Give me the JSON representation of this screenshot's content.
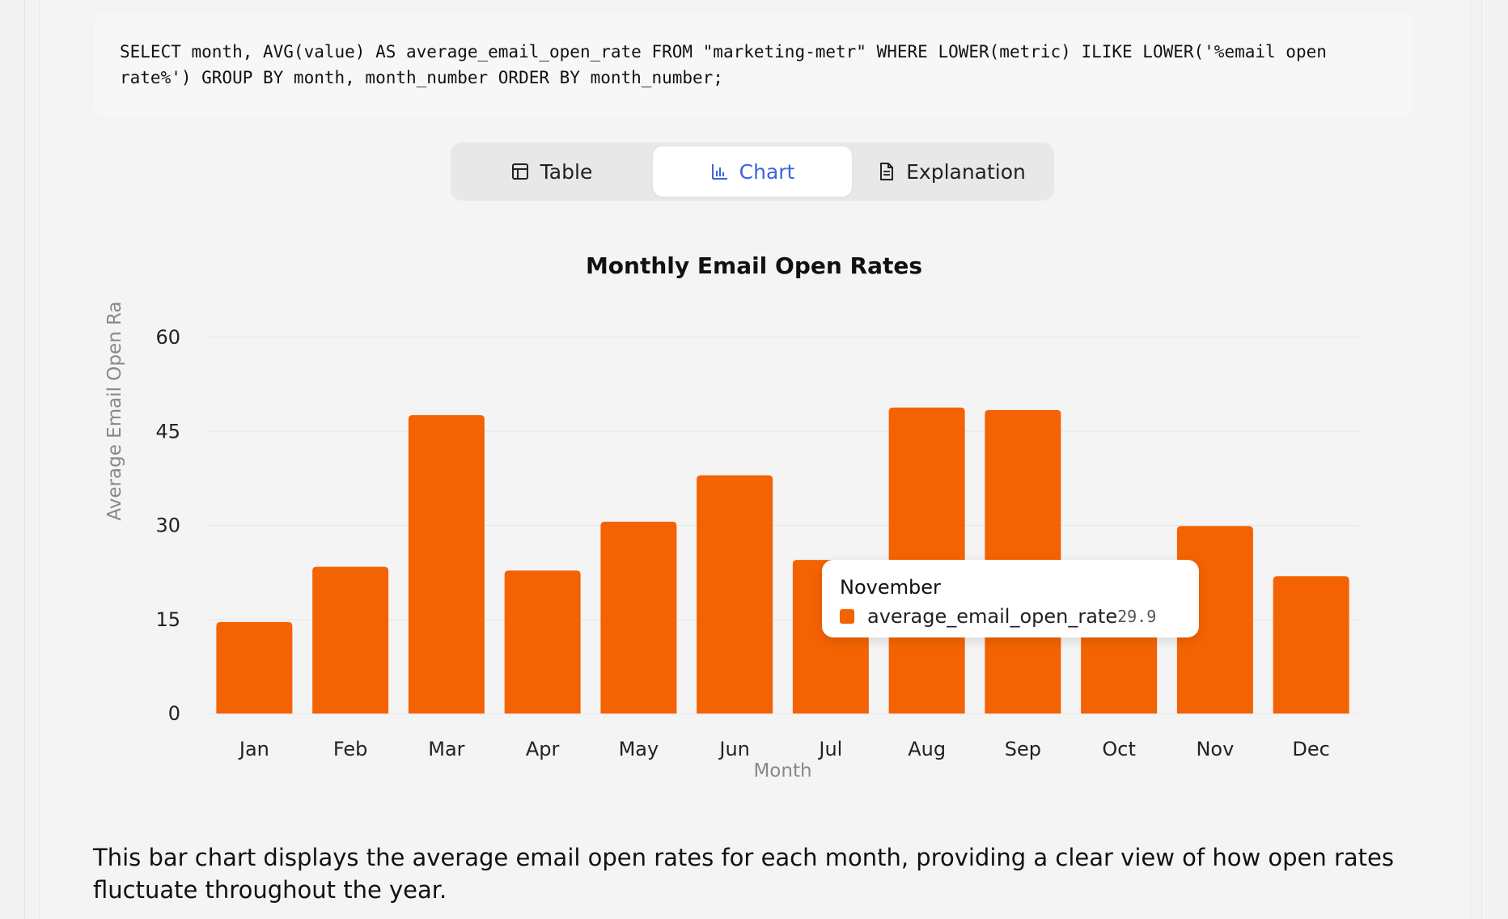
{
  "sql": "SELECT month, AVG(value) AS average_email_open_rate FROM \"marketing-metr\" WHERE LOWER(metric) ILIKE LOWER('%email open rate%') GROUP BY month, month_number ORDER BY month_number;",
  "tabs": [
    {
      "label": "Table",
      "icon": "table-icon",
      "active": false
    },
    {
      "label": "Chart",
      "icon": "bar-chart-icon",
      "active": true
    },
    {
      "label": "Explanation",
      "icon": "document-icon",
      "active": false
    }
  ],
  "colors": {
    "bar": "#f46303",
    "active_tab": "#3a64e0"
  },
  "tooltip": {
    "title": "November",
    "series": "average_email_open_rate",
    "value": "29.9"
  },
  "explanation": "This bar chart displays the average email open rates for each month, providing a clear view of how open rates fluctuate throughout the year.",
  "chart_data": {
    "type": "bar",
    "title": "Monthly Email Open Rates",
    "xlabel": "Month",
    "ylabel": "Average Email Open Ra",
    "categories": [
      "Jan",
      "Feb",
      "Mar",
      "Apr",
      "May",
      "Jun",
      "Jul",
      "Aug",
      "Sep",
      "Oct",
      "Nov",
      "Dec"
    ],
    "series": [
      {
        "values": [
          14.6,
          23.4,
          47.6,
          22.8,
          30.6,
          38.0,
          24.5,
          48.8,
          48.4,
          24.0,
          29.9,
          21.9
        ]
      }
    ],
    "yticks": [
      0,
      15,
      30,
      45,
      60
    ],
    "ylim": [
      0,
      60
    ],
    "grid": true
  }
}
